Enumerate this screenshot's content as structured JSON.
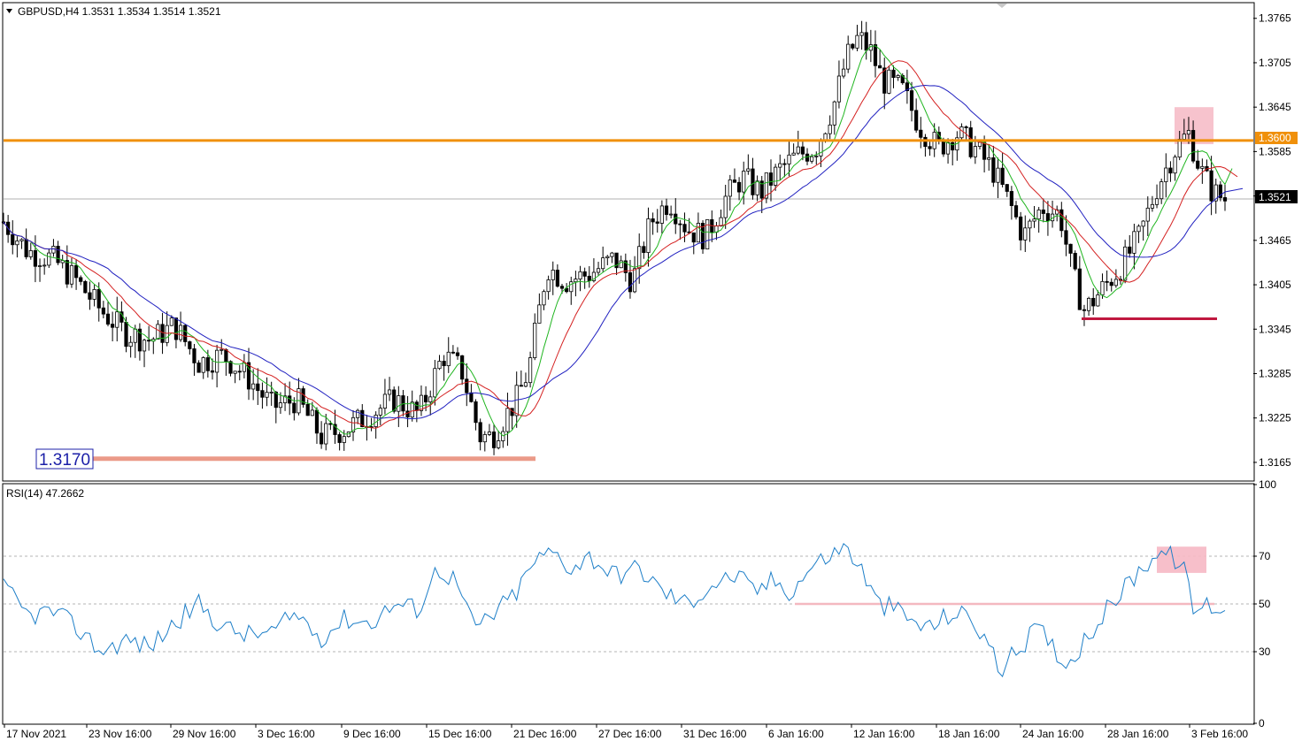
{
  "header": {
    "symbol_line": "GBPUSD,H4  1.3531 1.3534 1.3514 1.3521"
  },
  "chart_data": [
    {
      "type": "candlestick",
      "symbol": "GBPUSD",
      "timeframe": "H4",
      "last_ohlc": {
        "open": 1.3531,
        "high": 1.3534,
        "low": 1.3514,
        "close": 1.3521
      },
      "ylim": [
        1.3141,
        1.3785
      ],
      "y_ticks": [
        "1.3765",
        "1.3705",
        "1.3645",
        "1.3585",
        "1.3525",
        "1.3465",
        "1.3405",
        "1.3345",
        "1.3285",
        "1.3225",
        "1.3165"
      ],
      "current_price_label": "1.3521",
      "resistance": {
        "value": 1.36,
        "label": "1.3600",
        "color": "#f0900a"
      },
      "support": {
        "value": 1.317,
        "label": "1.3170",
        "color": "#eb9a88"
      },
      "recent_low_line": {
        "value": 1.3359,
        "color": "#c01840"
      },
      "highlight_zone": {
        "from": 1.3595,
        "to": 1.3645,
        "color": "#f6b8c4"
      },
      "moving_averages": [
        {
          "color": "#1fb51f",
          "last": 1.3562
        },
        {
          "color": "#d42020",
          "last": 1.3551
        },
        {
          "color": "#2020c0",
          "last": 1.3535
        }
      ],
      "price_path": [
        [
          0,
          1.349
        ],
        [
          0.02,
          1.345
        ],
        [
          0.04,
          1.344
        ],
        [
          0.06,
          1.341
        ],
        [
          0.08,
          1.337
        ],
        [
          0.1,
          1.334
        ],
        [
          0.12,
          1.333
        ],
        [
          0.14,
          1.335
        ],
        [
          0.16,
          1.33
        ],
        [
          0.18,
          1.331
        ],
        [
          0.2,
          1.328
        ],
        [
          0.22,
          1.324
        ],
        [
          0.24,
          1.325
        ],
        [
          0.26,
          1.32
        ],
        [
          0.28,
          1.321
        ],
        [
          0.3,
          1.323
        ],
        [
          0.32,
          1.325
        ],
        [
          0.34,
          1.323
        ],
        [
          0.36,
          1.331
        ],
        [
          0.375,
          1.329
        ],
        [
          0.39,
          1.32
        ],
        [
          0.4,
          1.32
        ],
        [
          0.42,
          1.325
        ],
        [
          0.43,
          1.329
        ],
        [
          0.445,
          1.343
        ],
        [
          0.46,
          1.341
        ],
        [
          0.48,
          1.342
        ],
        [
          0.5,
          1.344
        ],
        [
          0.515,
          1.341
        ],
        [
          0.53,
          1.349
        ],
        [
          0.545,
          1.352
        ],
        [
          0.56,
          1.348
        ],
        [
          0.575,
          1.347
        ],
        [
          0.59,
          1.352
        ],
        [
          0.605,
          1.355
        ],
        [
          0.62,
          1.353
        ],
        [
          0.635,
          1.356
        ],
        [
          0.65,
          1.358
        ],
        [
          0.665,
          1.359
        ],
        [
          0.68,
          1.365
        ],
        [
          0.69,
          1.371
        ],
        [
          0.7,
          1.374
        ],
        [
          0.71,
          1.372
        ],
        [
          0.72,
          1.368
        ],
        [
          0.735,
          1.367
        ],
        [
          0.75,
          1.362
        ],
        [
          0.765,
          1.359
        ],
        [
          0.78,
          1.361
        ],
        [
          0.795,
          1.359
        ],
        [
          0.81,
          1.356
        ],
        [
          0.825,
          1.351
        ],
        [
          0.835,
          1.347
        ],
        [
          0.85,
          1.351
        ],
        [
          0.865,
          1.35
        ],
        [
          0.875,
          1.342
        ],
        [
          0.885,
          1.337
        ],
        [
          0.9,
          1.34
        ],
        [
          0.915,
          1.343
        ],
        [
          0.93,
          1.347
        ],
        [
          0.945,
          1.354
        ],
        [
          0.96,
          1.359
        ],
        [
          0.97,
          1.361
        ],
        [
          0.98,
          1.356
        ],
        [
          0.99,
          1.353
        ],
        [
          1.0,
          1.3521
        ]
      ],
      "x_labels": [
        "17 Nov 2021",
        "23 Nov 16:00",
        "29 Nov 16:00",
        "3 Dec 16:00",
        "9 Dec 16:00",
        "15 Dec 16:00",
        "21 Dec 16:00",
        "27 Dec 16:00",
        "31 Dec 16:00",
        "6 Jan 16:00",
        "12 Jan 16:00",
        "18 Jan 16:00",
        "24 Jan 16:00",
        "28 Jan 16:00",
        "3 Feb 16:00"
      ]
    },
    {
      "type": "line",
      "indicator": "RSI",
      "title": "RSI(14) 47.2662",
      "ylim": [
        0,
        100
      ],
      "y_ticks": [
        "100",
        "70",
        "50",
        "30",
        "0"
      ],
      "levels": [
        70,
        50,
        30
      ],
      "line_color": "#1e7fc8",
      "level_line": {
        "value": 50,
        "color": "#f4b8c0"
      },
      "highlight_zone": {
        "from": 63,
        "to": 74,
        "color": "#f6b8c4"
      },
      "series": [
        [
          0,
          57
        ],
        [
          0.02,
          45
        ],
        [
          0.04,
          47
        ],
        [
          0.06,
          40
        ],
        [
          0.08,
          30
        ],
        [
          0.1,
          35
        ],
        [
          0.12,
          32
        ],
        [
          0.14,
          42
        ],
        [
          0.16,
          50
        ],
        [
          0.18,
          40
        ],
        [
          0.2,
          37
        ],
        [
          0.22,
          38
        ],
        [
          0.24,
          46
        ],
        [
          0.26,
          36
        ],
        [
          0.28,
          44
        ],
        [
          0.3,
          42
        ],
        [
          0.32,
          50
        ],
        [
          0.34,
          48
        ],
        [
          0.355,
          65
        ],
        [
          0.37,
          60
        ],
        [
          0.385,
          40
        ],
        [
          0.4,
          45
        ],
        [
          0.42,
          55
        ],
        [
          0.435,
          68
        ],
        [
          0.45,
          72
        ],
        [
          0.465,
          65
        ],
        [
          0.48,
          70
        ],
        [
          0.5,
          62
        ],
        [
          0.52,
          65
        ],
        [
          0.54,
          55
        ],
        [
          0.56,
          50
        ],
        [
          0.58,
          58
        ],
        [
          0.6,
          62
        ],
        [
          0.615,
          55
        ],
        [
          0.63,
          60
        ],
        [
          0.645,
          55
        ],
        [
          0.66,
          65
        ],
        [
          0.675,
          70
        ],
        [
          0.69,
          74
        ],
        [
          0.705,
          62
        ],
        [
          0.715,
          50
        ],
        [
          0.73,
          48
        ],
        [
          0.745,
          42
        ],
        [
          0.76,
          40
        ],
        [
          0.775,
          46
        ],
        [
          0.79,
          45
        ],
        [
          0.805,
          35
        ],
        [
          0.815,
          22
        ],
        [
          0.83,
          30
        ],
        [
          0.845,
          40
        ],
        [
          0.86,
          32
        ],
        [
          0.87,
          24
        ],
        [
          0.885,
          35
        ],
        [
          0.9,
          45
        ],
        [
          0.915,
          55
        ],
        [
          0.93,
          64
        ],
        [
          0.945,
          72
        ],
        [
          0.955,
          70
        ],
        [
          0.965,
          67
        ],
        [
          0.975,
          46
        ],
        [
          0.985,
          50
        ],
        [
          1.0,
          47
        ]
      ]
    }
  ]
}
